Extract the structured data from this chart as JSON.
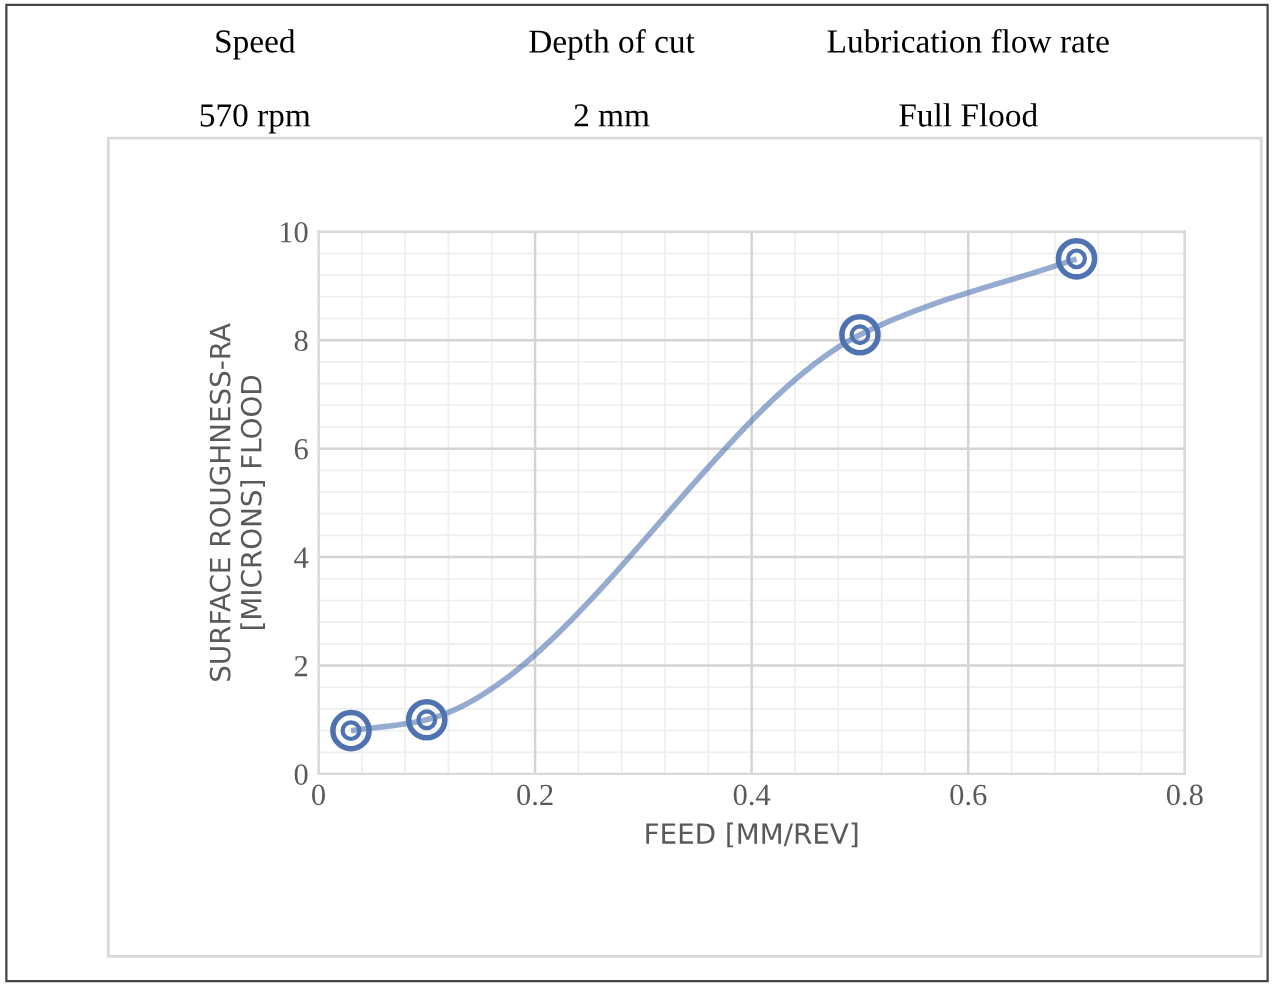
{
  "chart_data": {
    "type": "line",
    "xlabel": "FEED [MM/REV]",
    "ylabel": "SURFACE ROUGHNESS-RA\n[MICRONS] FLOOD",
    "annotations": [
      "Speed",
      "Depth of cut",
      "Lubrication flow rate",
      "570 rpm",
      "2 mm",
      "Full Flood"
    ],
    "x": [
      0.03,
      0.1,
      0.5,
      0.7
    ],
    "series": [
      {
        "color": "#4f73b0",
        "values": [
          0.8,
          1.0,
          8.1,
          9.5
        ]
      }
    ],
    "xlim": [
      0,
      0.8
    ],
    "xticks": [
      0,
      0.2,
      0.4,
      0.6,
      0.8
    ],
    "ylim": [
      0,
      10
    ],
    "yticks": [
      0,
      2,
      4,
      6,
      8,
      10
    ],
    "grid": true,
    "marker": "circle",
    "line_style": "solid",
    "legend": false
  }
}
